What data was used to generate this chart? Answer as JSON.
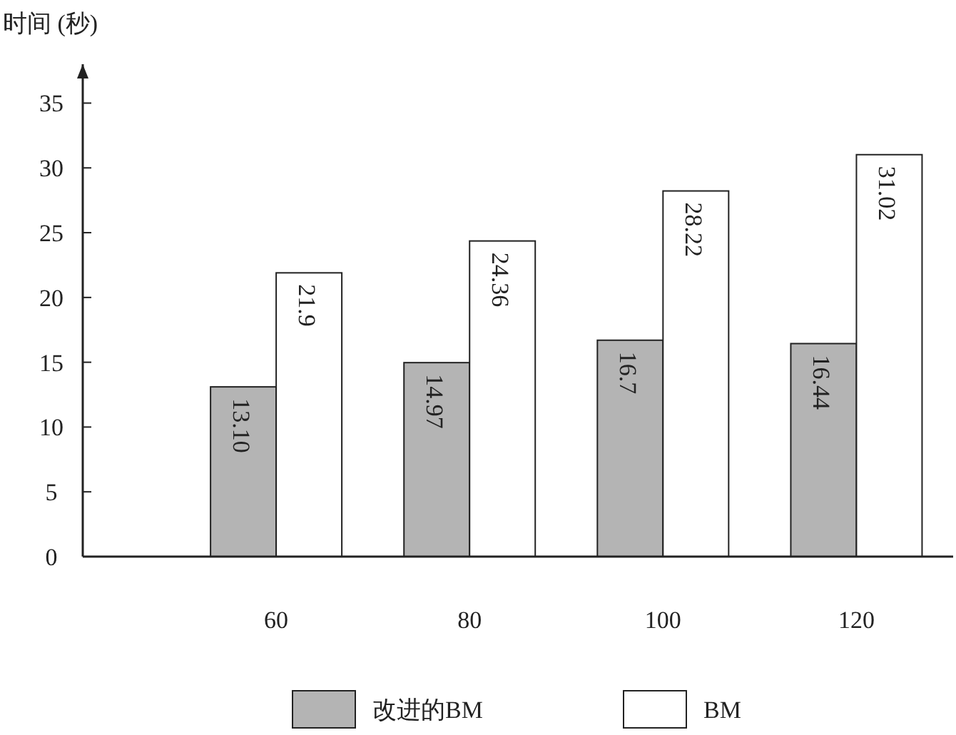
{
  "chart_data": {
    "type": "bar",
    "ylabel": "时间 (秒)",
    "categories": [
      "60",
      "80",
      "100",
      "120"
    ],
    "series": [
      {
        "name": "改进的BM",
        "color": "#b4b4b4",
        "values": [
          13.1,
          14.97,
          16.7,
          16.44
        ],
        "value_labels": [
          "13.10",
          "14.97",
          "16.7",
          "16.44"
        ]
      },
      {
        "name": "BM",
        "color": "#ffffff",
        "values": [
          21.9,
          24.36,
          28.22,
          31.02
        ],
        "value_labels": [
          "21.9",
          "24.36",
          "28.22",
          "31.02"
        ]
      }
    ],
    "ylim": [
      0,
      38
    ],
    "yticks": [
      0,
      5,
      10,
      15,
      20,
      25,
      30,
      35
    ],
    "grid": false,
    "legend": "bottom"
  }
}
